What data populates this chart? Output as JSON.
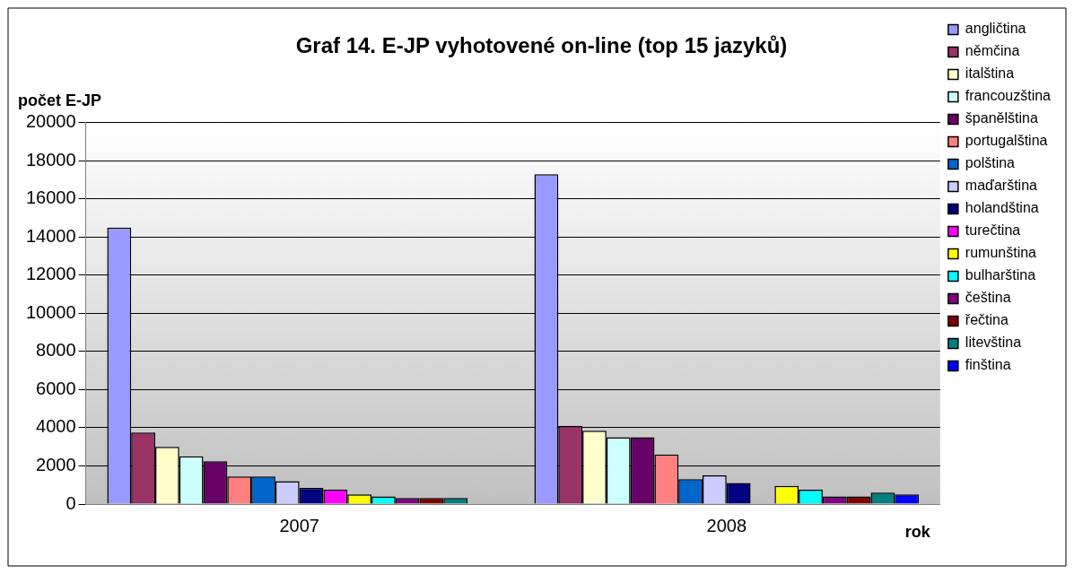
{
  "chart_data": {
    "type": "bar",
    "title": "Graf 14. E-JP vyhotovené on-line (top 15 jazyků)",
    "ylabel": "počet E-JP",
    "xlabel": "rok",
    "categories": [
      "2007",
      "2008"
    ],
    "ylim": [
      0,
      20000
    ],
    "yticks": [
      0,
      2000,
      4000,
      6000,
      8000,
      10000,
      12000,
      14000,
      16000,
      18000,
      20000
    ],
    "grid": "y",
    "legend": "right",
    "series": [
      {
        "name": "angličtina",
        "color": "#9999ff",
        "values": [
          14500,
          17300
        ]
      },
      {
        "name": "němčina",
        "color": "#993366",
        "values": [
          3750,
          4100
        ]
      },
      {
        "name": "italština",
        "color": "#ffffcc",
        "values": [
          3000,
          3850
        ]
      },
      {
        "name": "francouzština",
        "color": "#ccffff",
        "values": [
          2500,
          3500
        ]
      },
      {
        "name": "španělština",
        "color": "#660066",
        "values": [
          2250,
          3500
        ]
      },
      {
        "name": "portugalština",
        "color": "#ff8080",
        "values": [
          1450,
          2600
        ]
      },
      {
        "name": "polština",
        "color": "#0066cc",
        "values": [
          1450,
          1300
        ]
      },
      {
        "name": "maďarština",
        "color": "#ccccff",
        "values": [
          1200,
          1500
        ]
      },
      {
        "name": "holandština",
        "color": "#000080",
        "values": [
          850,
          1100
        ]
      },
      {
        "name": "turečtina",
        "color": "#ff00ff",
        "values": [
          750,
          null
        ]
      },
      {
        "name": "rumunština",
        "color": "#ffff00",
        "values": [
          500,
          950
        ]
      },
      {
        "name": "bulharština",
        "color": "#00ffff",
        "values": [
          400,
          750
        ]
      },
      {
        "name": "čeština",
        "color": "#800080",
        "values": [
          320,
          400
        ]
      },
      {
        "name": "řečtina",
        "color": "#800000",
        "values": [
          320,
          400
        ]
      },
      {
        "name": "litevština",
        "color": "#008080",
        "values": [
          320,
          600
        ]
      },
      {
        "name": "finština",
        "color": "#0000ff",
        "values": [
          null,
          500
        ]
      }
    ]
  }
}
